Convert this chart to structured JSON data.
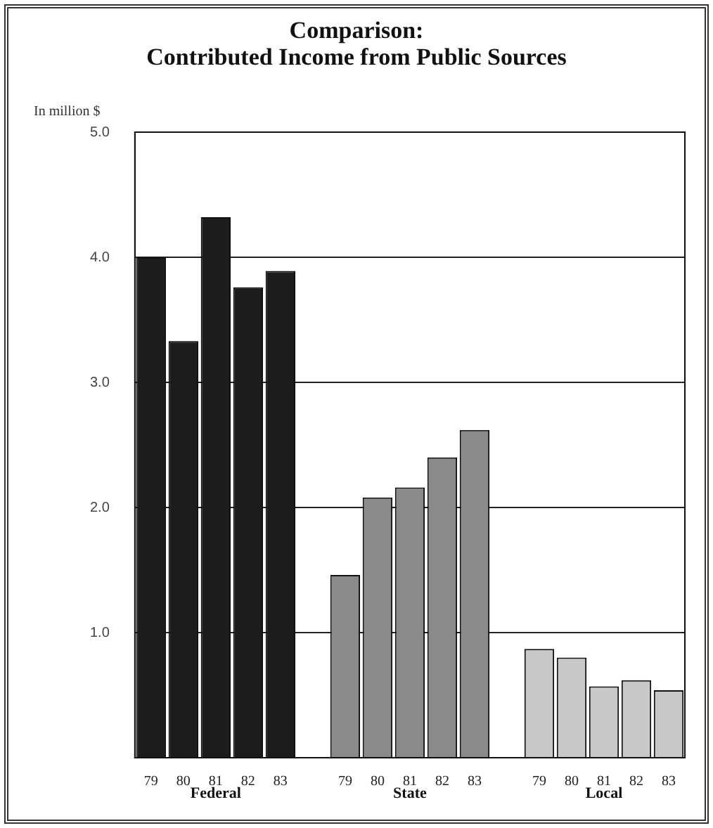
{
  "chart_data": {
    "type": "bar",
    "title": "Comparison:\nContributed Income from Public Sources",
    "ylabel": "In million $",
    "categories": [
      "79",
      "80",
      "81",
      "82",
      "83",
      null,
      "79",
      "80",
      "81",
      "82",
      "83",
      null,
      "79",
      "80",
      "81",
      "82",
      "83"
    ],
    "series": [
      {
        "name": "Federal",
        "color": "#1c1c1c",
        "values": [
          4.0,
          3.33,
          4.32,
          3.76,
          3.89,
          null,
          null,
          null,
          null,
          null,
          null,
          null,
          null,
          null,
          null,
          null,
          null
        ]
      },
      {
        "name": "State",
        "color": "#8a8a8a",
        "values": [
          null,
          null,
          null,
          null,
          null,
          null,
          1.46,
          2.08,
          2.16,
          2.4,
          2.62,
          null,
          null,
          null,
          null,
          null,
          null
        ]
      },
      {
        "name": "Local",
        "color": "#c8c8c8",
        "values": [
          null,
          null,
          null,
          null,
          null,
          null,
          null,
          null,
          null,
          null,
          null,
          null,
          0.87,
          0.8,
          0.57,
          0.62,
          0.54
        ]
      }
    ],
    "ylim": [
      0,
      5
    ],
    "yticks": [
      {
        "value": 1,
        "label": "1.0"
      },
      {
        "value": 2,
        "label": "2.0"
      },
      {
        "value": 3,
        "label": "3.0"
      },
      {
        "value": 4,
        "label": "4.0"
      },
      {
        "value": 5,
        "label": "5.0"
      }
    ],
    "grid": "y",
    "legend": false
  }
}
